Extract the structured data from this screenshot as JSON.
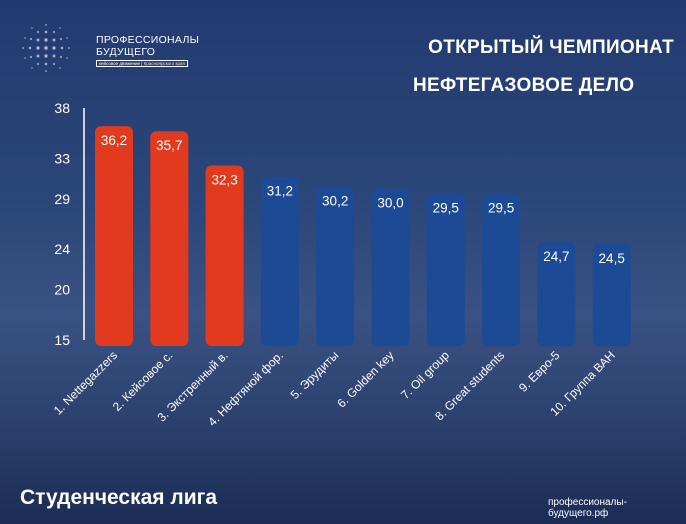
{
  "logo": {
    "line1": "ПРОФЕССИОНАЛЫ",
    "line2": "БУДУЩЕГО",
    "tagline_a": "кейсовое движение",
    "tagline_b": "Красноярского края"
  },
  "title": {
    "line1": "ОТКРЫТЫЙ ЧЕМПИОНАТ",
    "line2": "НЕФТЕГАЗОВОЕ ДЕЛО"
  },
  "footer": {
    "league": "Студенческая лига",
    "website": "профессионалы-будущего.рф"
  },
  "colors": {
    "top3": "#e23a1e",
    "others": "#1c4a94",
    "text": "#ffffff"
  },
  "chart_data": {
    "type": "bar",
    "categories": [
      "1. Nettegazzers",
      "2. Кейсовое с.",
      "3. Экстренный в.",
      "4. Нефтяной фор.",
      "5. Эрудиты",
      "6. Golden key",
      "7. Oil group",
      "8. Great students",
      "9. Евро-5",
      "10. Группа ВАН"
    ],
    "values": [
      36.2,
      35.7,
      32.3,
      31.2,
      30.2,
      30.0,
      29.5,
      29.5,
      24.7,
      24.5
    ],
    "value_labels": [
      "36,2",
      "35,7",
      "32,3",
      "31,2",
      "30,2",
      "30,0",
      "29,5",
      "29,5",
      "24,7",
      "24,5"
    ],
    "highlight_top": 3,
    "yticks": [
      15,
      20,
      24,
      29,
      33,
      38
    ],
    "ylim": [
      15,
      38
    ],
    "grid": false,
    "legend": "none"
  }
}
